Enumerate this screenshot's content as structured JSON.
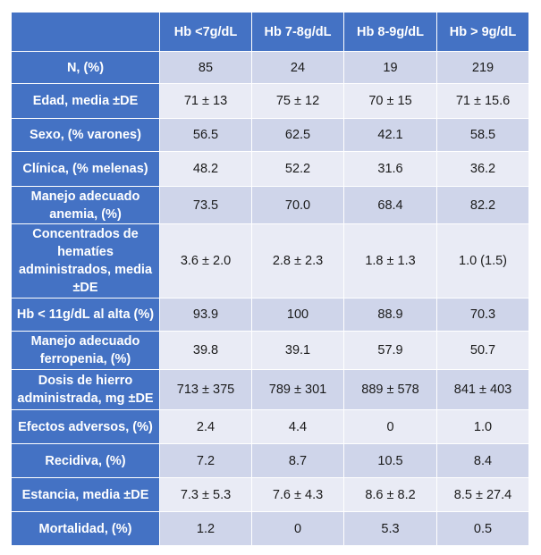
{
  "table": {
    "headers": [
      "",
      "Hb <7g/dL",
      "Hb 7-8g/dL",
      "Hb 8-9g/dL",
      "Hb > 9g/dL"
    ],
    "rows": [
      {
        "label": "N, (%)",
        "values": [
          "85",
          "24",
          "19",
          "219"
        ]
      },
      {
        "label": "Edad, media ±DE",
        "values": [
          "71 ± 13",
          "75 ± 12",
          "70 ± 15",
          "71 ± 15.6"
        ]
      },
      {
        "label": "Sexo, (% varones)",
        "values": [
          "56.5",
          "62.5",
          "42.1",
          "58.5"
        ]
      },
      {
        "label": "Clínica, (% melenas)",
        "values": [
          "48.2",
          "52.2",
          "31.6",
          "36.2"
        ]
      },
      {
        "label": "Manejo adecuado anemia, (%)",
        "values": [
          "73.5",
          "70.0",
          "68.4",
          "82.2"
        ]
      },
      {
        "label": "Concentrados de hematíes administrados, media ±DE",
        "values": [
          "3.6 ± 2.0",
          "2.8 ± 2.3",
          "1.8 ± 1.3",
          "1.0 (1.5)"
        ]
      },
      {
        "label": "Hb < 11g/dL al alta (%)",
        "values": [
          "93.9",
          "100",
          "88.9",
          "70.3"
        ]
      },
      {
        "label": "Manejo adecuado ferropenia, (%)",
        "values": [
          "39.8",
          "39.1",
          "57.9",
          "50.7"
        ]
      },
      {
        "label": "Dosis de hierro administrada, mg ±DE",
        "values": [
          "713 ± 375",
          "789 ± 301",
          "889 ± 578",
          "841 ± 403"
        ]
      },
      {
        "label": "Efectos adversos, (%)",
        "values": [
          "2.4",
          "4.4",
          "0",
          "1.0"
        ]
      },
      {
        "label": "Recidiva, (%)",
        "values": [
          "7.2",
          "8.7",
          "10.5",
          "8.4"
        ]
      },
      {
        "label": "Estancia, media ±DE",
        "values": [
          "7.3 ± 5.3",
          "7.6 ± 4.3",
          "8.6 ± 8.2",
          "8.5 ± 27.4"
        ]
      },
      {
        "label": "Mortalidad, (%)",
        "values": [
          "1.2",
          "0",
          "5.3",
          "0.5"
        ]
      }
    ]
  }
}
